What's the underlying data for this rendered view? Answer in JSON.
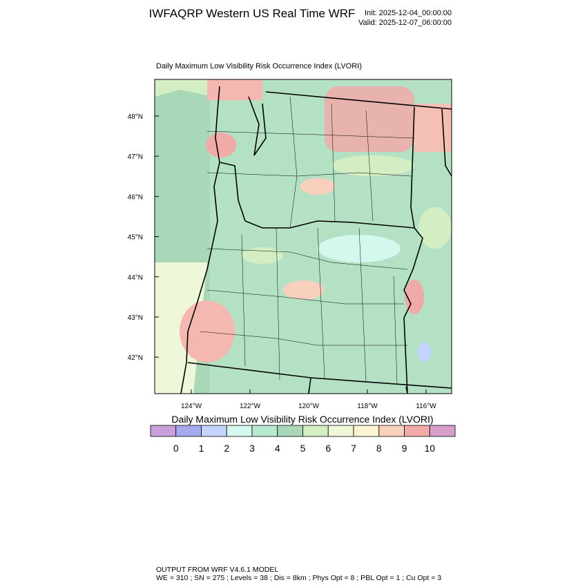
{
  "header": {
    "title": "IWFAQRP Western US Real Time WRF",
    "init": "Init: 2025-12-04_00:00:00",
    "valid": "Valid: 2025-12-07_06:00:00"
  },
  "map": {
    "subtitle": "Daily Maximum Low Visibility Risk Occurrence Index   (LVORI)",
    "lat_labels": [
      "48°N",
      "47°N",
      "46°N",
      "45°N",
      "44°N",
      "43°N",
      "42°N"
    ],
    "lon_labels": [
      "124°W",
      "122°W",
      "120°W",
      "118°W",
      "116°W"
    ]
  },
  "colorbar": {
    "title": "Daily Maximum Low Visibility Risk Occurrence Index  (LVORI)",
    "colors": [
      "#c8a0dc",
      "#a8aaf0",
      "#c4d4ff",
      "#d4f8ee",
      "#b8ead0",
      "#a8d8b8",
      "#d4eec4",
      "#eef8d8",
      "#fff4d4",
      "#f8d0bc",
      "#f0aaa8",
      "#d8a0c8"
    ],
    "ticks": [
      0,
      1,
      2,
      3,
      4,
      5,
      6,
      7,
      8,
      9,
      10
    ]
  },
  "footer": {
    "line1": "OUTPUT FROM WRF V4.6.1 MODEL",
    "line2": "WE = 310 ; SN = 275 ; Levels = 38 ; Dis = 8km ; Phys Opt = 8 ; PBL Opt = 1 ; Cu Opt = 3"
  }
}
